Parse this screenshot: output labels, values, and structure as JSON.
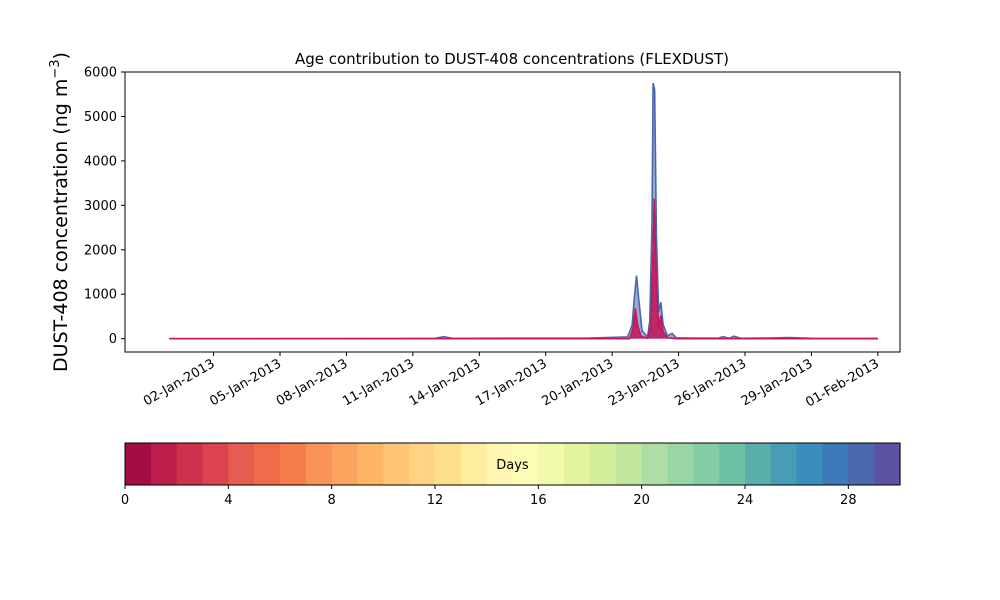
{
  "chart_data": {
    "type": "area",
    "title": "Age contribution to DUST-408 concentrations (FLEXDUST)",
    "ylabel": "DUST-408 concentration (ng m",
    "ylabel_unit_exponent": "−3",
    "ylabel_suffix": ")",
    "xlabel": "",
    "ylim": [
      -300,
      6000
    ],
    "y_ticks": [
      0,
      1000,
      2000,
      3000,
      4000,
      5000,
      6000
    ],
    "x_range": [
      "2012-12-29",
      "2013-02-02"
    ],
    "x_ticks": [
      "02-Jan-2013",
      "05-Jan-2013",
      "08-Jan-2013",
      "11-Jan-2013",
      "14-Jan-2013",
      "17-Jan-2013",
      "20-Jan-2013",
      "23-Jan-2013",
      "26-Jan-2013",
      "29-Jan-2013",
      "01-Feb-2013"
    ],
    "grid": false,
    "series": [
      {
        "role": "total",
        "color": "#4a67ab",
        "points": [
          [
            "2012-12-31",
            0
          ],
          [
            "2013-01-10",
            2
          ],
          [
            "2013-01-12",
            8
          ],
          [
            "2013-01-12.4",
            45
          ],
          [
            "2013-01-12.8",
            5
          ],
          [
            "2013-01-15",
            10
          ],
          [
            "2013-01-19",
            15
          ],
          [
            "2013-01-20.7",
            40
          ],
          [
            "2013-01-20.9",
            300
          ],
          [
            "2013-01-21.0",
            900
          ],
          [
            "2013-01-21.1",
            1420
          ],
          [
            "2013-01-21.2",
            900
          ],
          [
            "2013-01-21.35",
            180
          ],
          [
            "2013-01-21.6",
            40
          ],
          [
            "2013-01-21.7",
            400
          ],
          [
            "2013-01-21.8",
            2600
          ],
          [
            "2013-01-21.85",
            5750
          ],
          [
            "2013-01-21.92",
            5600
          ],
          [
            "2013-01-22.0",
            2300
          ],
          [
            "2013-01-22.1",
            600
          ],
          [
            "2013-01-22.2",
            820
          ],
          [
            "2013-01-22.3",
            320
          ],
          [
            "2013-01-22.5",
            60
          ],
          [
            "2013-01-22.7",
            120
          ],
          [
            "2013-01-22.9",
            20
          ],
          [
            "2013-01-23.5",
            15
          ],
          [
            "2013-01-24.8",
            12
          ],
          [
            "2013-01-25.0",
            45
          ],
          [
            "2013-01-25.3",
            10
          ],
          [
            "2013-01-25.5",
            55
          ],
          [
            "2013-01-25.8",
            8
          ],
          [
            "2013-01-27.0",
            15
          ],
          [
            "2013-01-28.0",
            25
          ],
          [
            "2013-01-29",
            8
          ],
          [
            "2013-02-01",
            5
          ]
        ]
      },
      {
        "role": "young-age fraction",
        "color": "#c2195a",
        "points": [
          [
            "2012-12-31",
            0
          ],
          [
            "2013-01-20.8",
            0
          ],
          [
            "2013-01-20.95",
            250
          ],
          [
            "2013-01-21.05",
            680
          ],
          [
            "2013-01-21.15",
            300
          ],
          [
            "2013-01-21.3",
            60
          ],
          [
            "2013-01-21.6",
            10
          ],
          [
            "2013-01-21.75",
            300
          ],
          [
            "2013-01-21.85",
            2000
          ],
          [
            "2013-01-21.9",
            3150
          ],
          [
            "2013-01-22.0",
            1200
          ],
          [
            "2013-01-22.1",
            250
          ],
          [
            "2013-01-22.2",
            520
          ],
          [
            "2013-01-22.3",
            160
          ],
          [
            "2013-01-22.5",
            20
          ],
          [
            "2013-01-22.9",
            0
          ],
          [
            "2013-02-01",
            0
          ]
        ]
      }
    ],
    "colorbar": {
      "label": "Days",
      "min": 0,
      "max": 30,
      "ticks": [
        0,
        4,
        8,
        12,
        16,
        20,
        24,
        28
      ],
      "colors": [
        "#a30c45",
        "#bb1e4a",
        "#ce314c",
        "#dc434e",
        "#e65d4f",
        "#f06b4a",
        "#f67c4b",
        "#f99357",
        "#fba35f",
        "#fdb566",
        "#fec574",
        "#fed382",
        "#fee08b",
        "#feed9f",
        "#fff7b1",
        "#fbfdb7",
        "#f2f9ab",
        "#e4f49d",
        "#d3ed9b",
        "#c1e69e",
        "#aedea3",
        "#98d6a4",
        "#82cda5",
        "#6cc2a6",
        "#5aafad",
        "#489cb6",
        "#3a8dbe",
        "#3d7ab9",
        "#4968b0",
        "#5b54a4"
      ]
    }
  }
}
